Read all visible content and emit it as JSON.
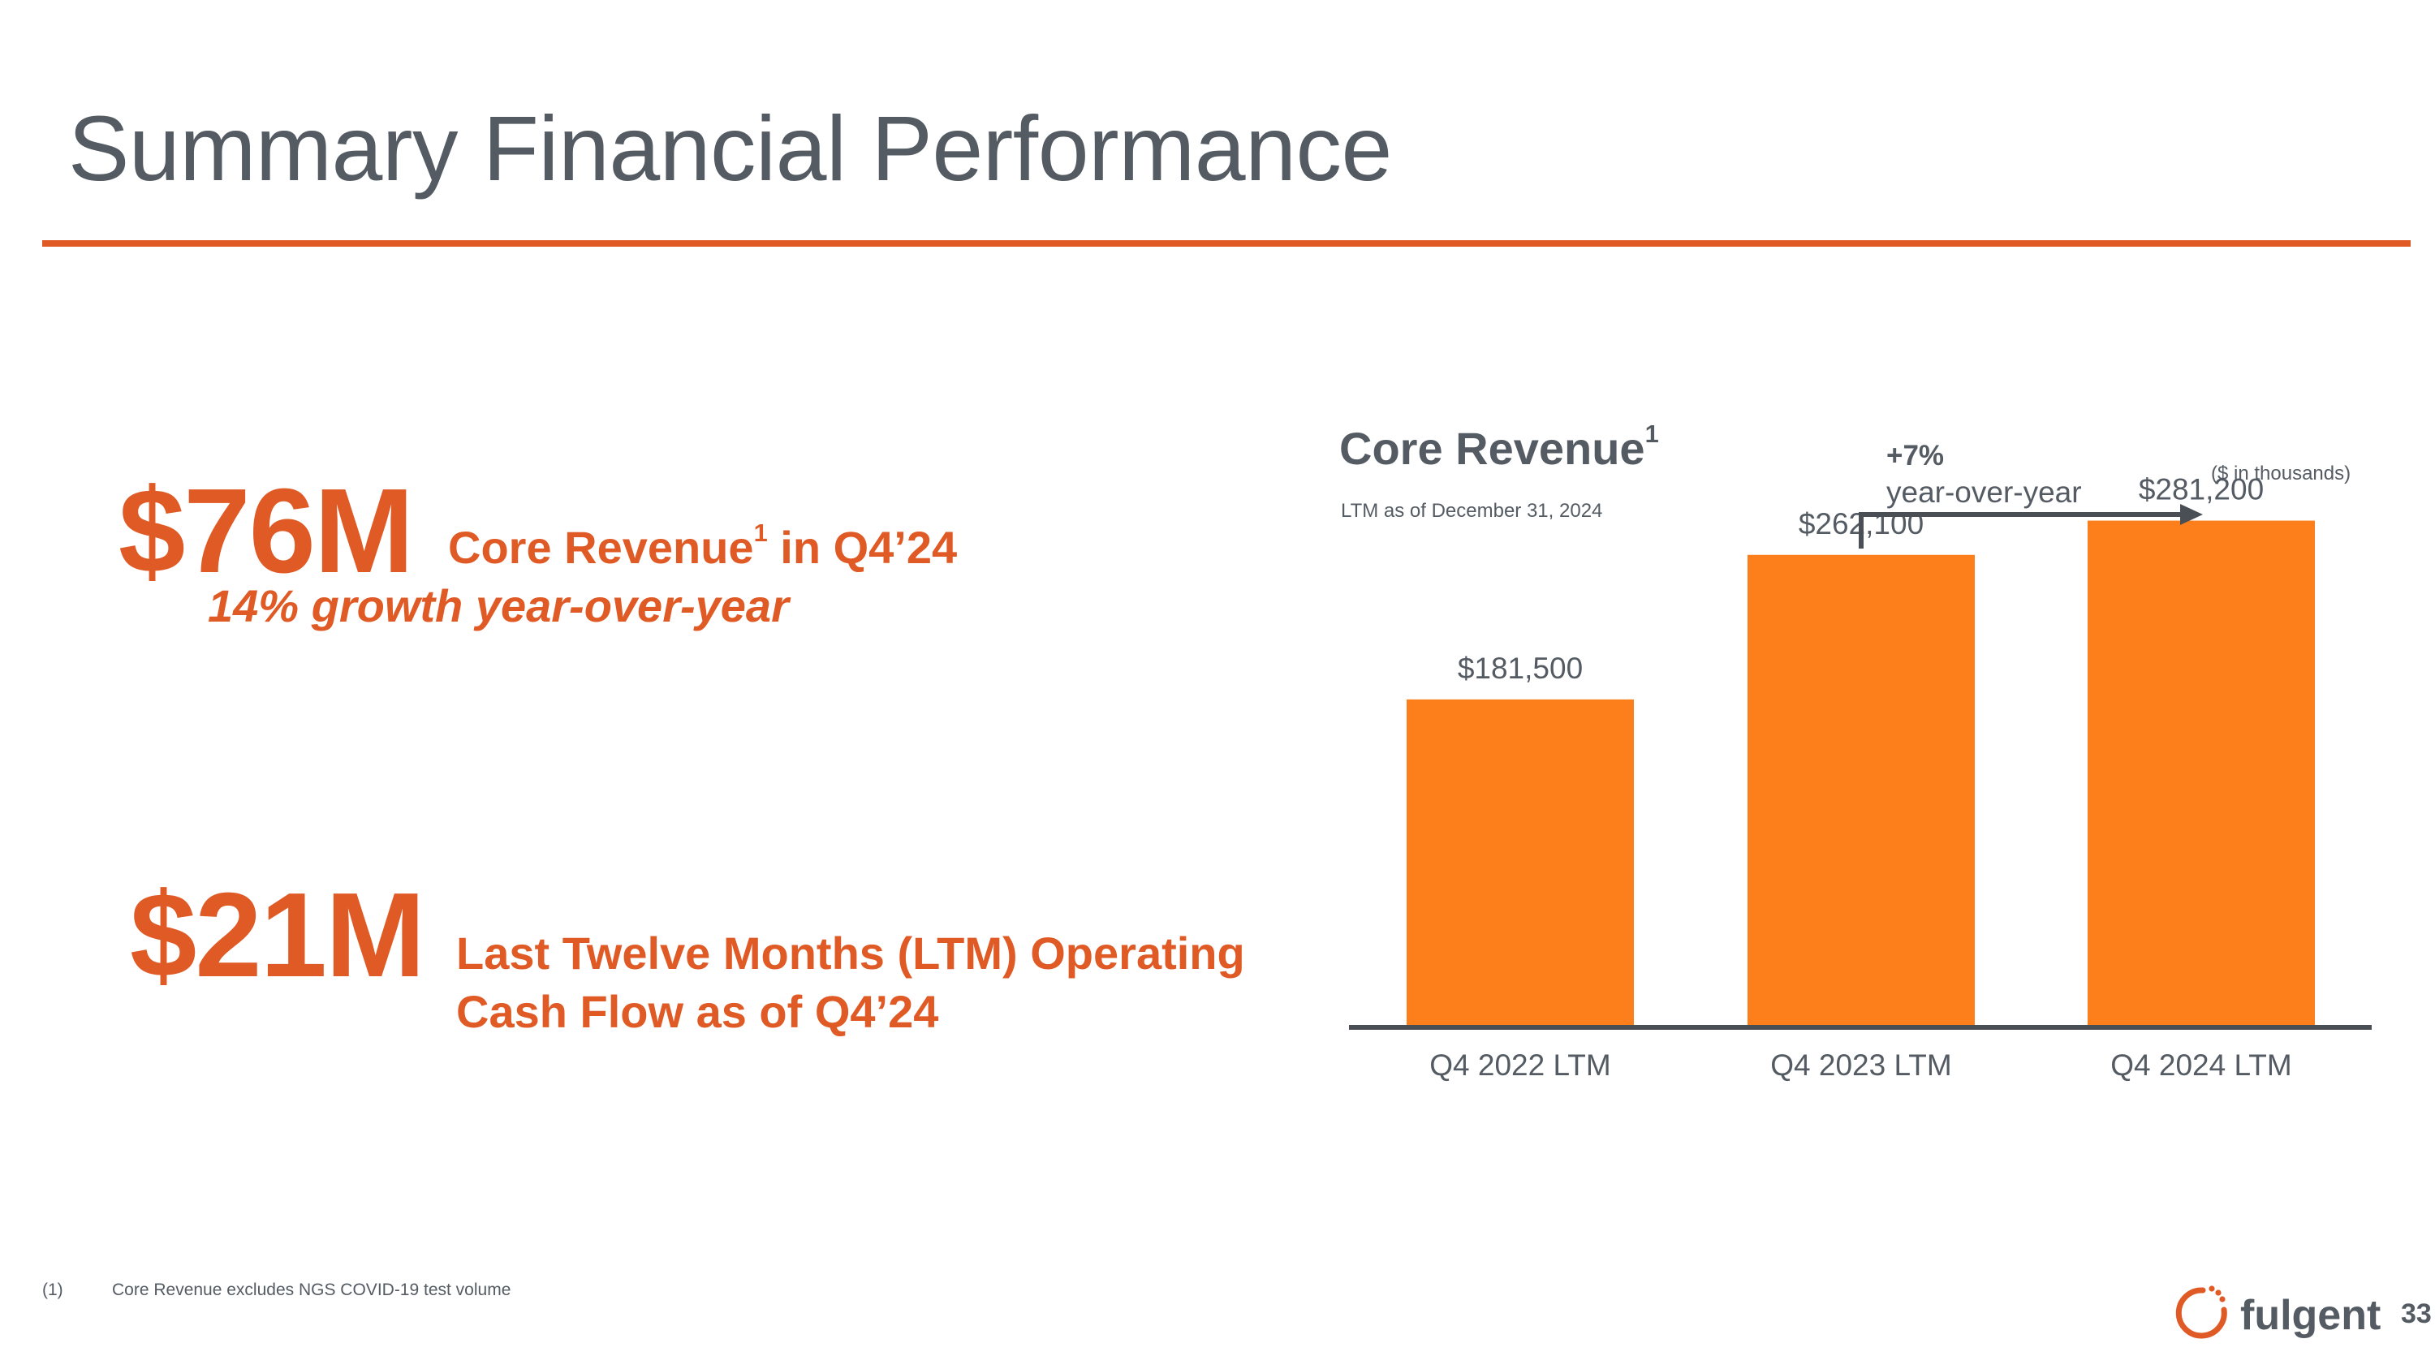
{
  "slide": {
    "title": "Summary Financial Performance",
    "page_number": "33"
  },
  "metrics": [
    {
      "value": "$76M",
      "label": "Core Revenue",
      "label_footnote": "1",
      "label_suffix": " in Q4’24",
      "sub": "14% growth year-over-year"
    },
    {
      "value": "$21M",
      "label_line1": "Last Twelve Months (LTM) Operating",
      "label_line2": "Cash Flow as of Q4’24"
    }
  ],
  "chart_data": {
    "type": "bar",
    "title": "Core Revenue",
    "title_footnote": "1",
    "subtitle": "LTM as of December 31, 2024",
    "units_note": "($ in thousands)",
    "categories": [
      "Q4 2022 LTM",
      "Q4 2023 LTM",
      "Q4 2024 LTM"
    ],
    "values": [
      181500,
      262100,
      281200
    ],
    "data_labels": [
      "$181,500",
      "$262,100",
      "$281,200"
    ],
    "ylim": [
      0,
      300000
    ],
    "xlabel": "",
    "ylabel": "",
    "grid": false,
    "bar_color": "#fd7f1b",
    "annotation": {
      "pct": "+7%",
      "text": "year-over-year",
      "from_category": "Q4 2023 LTM",
      "to_category": "Q4 2024 LTM"
    }
  },
  "footnote": {
    "number": "(1)",
    "text": "Core Revenue excludes NGS COVID-19 test volume"
  },
  "logo": {
    "text": "fulgent"
  },
  "colors": {
    "accent": "#e05a25",
    "bar": "#fd7f1b",
    "text_gray": "#545b63",
    "axis": "#4a4f55"
  }
}
